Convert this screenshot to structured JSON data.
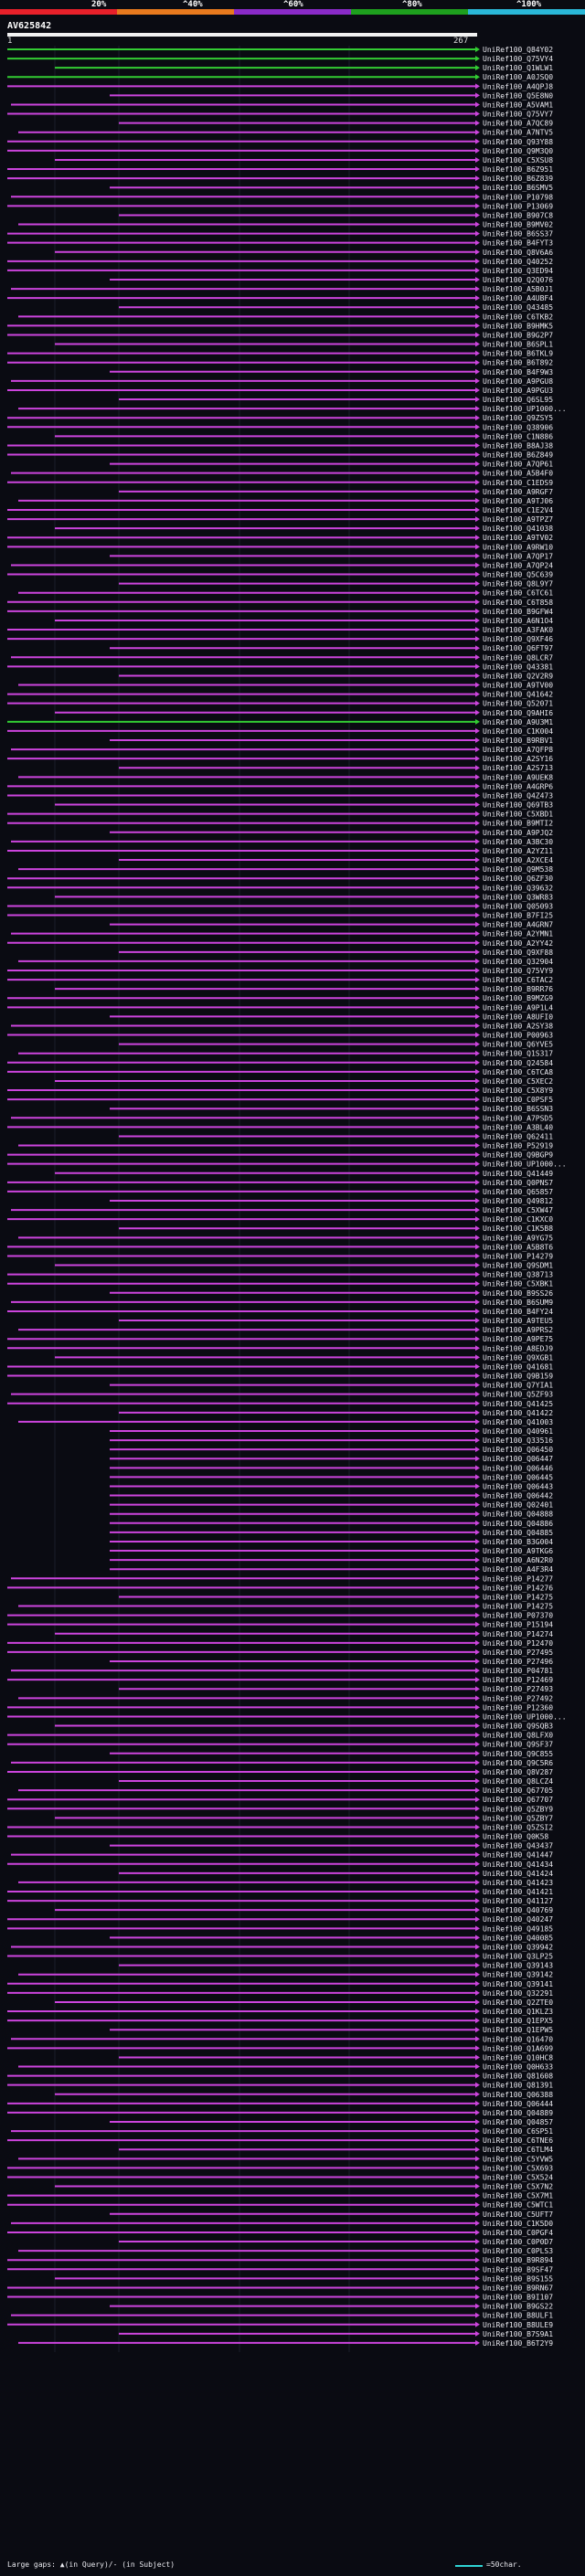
{
  "query": {
    "id": "AV625842",
    "start_label": "1",
    "end_label": "267",
    "length": 267
  },
  "percent_scale": {
    "labels": [
      "20%",
      "^40%",
      "^60%",
      "^80%",
      "^100%"
    ],
    "colors": [
      "#e8202a",
      "#e87a1e",
      "#8a2ac8",
      "#1ea01e",
      "#2ab8d8"
    ]
  },
  "colors": {
    "background": "#0a0b12",
    "hit_magenta": "#cc44dd",
    "hit_green": "#33cc33",
    "gap": "#cc44dd",
    "query_line": "#f2f2f2",
    "scale_line": "#2fd4d4"
  },
  "footer": {
    "large_gaps_text": "Large gaps: ▲(in Query)/- (in Subject)",
    "scale_text": "=50char."
  },
  "hit_ids": [
    "UniRef100_Q84Y02",
    "UniRef100_Q75VY4",
    "UniRef100_Q1WLW1",
    "UniRef100_A0JSQ0",
    "UniRef100_A4QPJ8",
    "UniRef100_Q5E8N0",
    "UniRef100_A5VAM1",
    "UniRef100_Q75VY7",
    "UniRef100_A7QC89",
    "UniRef100_A7NTV5",
    "UniRef100_Q93Y88",
    "UniRef100_Q9M3Q0",
    "UniRef100_C5XSU8",
    "UniRef100_B6Z951",
    "UniRef100_B6Z839",
    "UniRef100_B6SMV5",
    "UniRef100_P10798",
    "UniRef100_P13069",
    "UniRef100_B907C8",
    "UniRef100_B9MV02",
    "UniRef100_B6SS37",
    "UniRef100_B4FYT3",
    "UniRef100_Q8V6A6",
    "UniRef100_Q40252",
    "UniRef100_Q3ED94",
    "UniRef100_Q2Q076",
    "UniRef100_A5B0J1",
    "UniRef100_A4UBF4",
    "UniRef100_Q43485",
    "UniRef100_C6TKB2",
    "UniRef100_B9HMK5",
    "UniRef100_B9G2P7",
    "UniRef100_B6SPL1",
    "UniRef100_B6TKL9",
    "UniRef100_B6T892",
    "UniRef100_B4F9W3",
    "UniRef100_A9PGU8",
    "UniRef100_A9PGU3",
    "UniRef100_Q6SL95",
    "UniRef100_UP1000...",
    "UniRef100_Q9ZSY5",
    "UniRef100_Q38906",
    "UniRef100_C1N886",
    "UniRef100_B8AJ38",
    "UniRef100_B6Z849",
    "UniRef100_A7QP61",
    "UniRef100_A5B4F0",
    "UniRef100_C1EDS9",
    "UniRef100_A9RGF7",
    "UniRef100_A9TJ06",
    "UniRef100_C1E2V4",
    "UniRef100_A9TPZ7",
    "UniRef100_Q41038",
    "UniRef100_A9TV02",
    "UniRef100_A9RW10",
    "UniRef100_A7QP17",
    "UniRef100_A7QP24",
    "UniRef100_Q5C639",
    "UniRef100_Q8L9Y7",
    "UniRef100_C6TC61",
    "UniRef100_C6T858",
    "UniRef100_B9GFW4",
    "UniRef100_A6N1O4",
    "UniRef100_A3FAK0",
    "UniRef100_Q9XF46",
    "UniRef100_Q6FT97",
    "UniRef100_Q8LCR7",
    "UniRef100_Q43381",
    "UniRef100_Q2V2R9",
    "UniRef100_A9TV00",
    "UniRef100_Q41642",
    "UniRef100_Q52071",
    "UniRef100_Q9AHI6",
    "UniRef100_A9U3M1",
    "UniRef100_C1K004",
    "UniRef100_B9RBV1",
    "UniRef100_A7QFP8",
    "UniRef100_A2SY16",
    "UniRef100_A2S713",
    "UniRef100_A9UEK8",
    "UniRef100_A4GRP6",
    "UniRef100_Q4Z473",
    "UniRef100_Q69TB3",
    "UniRef100_C5XBD1",
    "UniRef100_B9MTI2",
    "UniRef100_A9PJQ2",
    "UniRef100_A3BC30",
    "UniRef100_A2YZ11",
    "UniRef100_A2XCE4",
    "UniRef100_Q9M538",
    "UniRef100_Q6ZF30",
    "UniRef100_Q39632",
    "UniRef100_Q3WR83",
    "UniRef100_Q05093",
    "UniRef100_B7FI25",
    "UniRef100_A4GRN7",
    "UniRef100_A2YMN1",
    "UniRef100_A2YY42",
    "UniRef100_Q9XF88",
    "UniRef100_Q32904",
    "UniRef100_Q75VY9",
    "UniRef100_C6TAC2",
    "UniRef100_B9RR76",
    "UniRef100_B9MZG9",
    "UniRef100_A9P1L4",
    "UniRef100_A8UFI0",
    "UniRef100_A2SY38",
    "UniRef100_P00963",
    "UniRef100_Q6YVE5",
    "UniRef100_Q1S317",
    "UniRef100_Q24584",
    "UniRef100_C6TCA8",
    "UniRef100_C5XEC2",
    "UniRef100_C5X8Y9",
    "UniRef100_C0PSF5",
    "UniRef100_B6SSN3",
    "UniRef100_A7PSD5",
    "UniRef100_A3BL40",
    "UniRef100_Q62411",
    "UniRef100_P52919",
    "UniRef100_Q9BGP9",
    "UniRef100_UP1000...",
    "UniRef100_Q41449",
    "UniRef100_Q0PNS7",
    "UniRef100_Q65857",
    "UniRef100_Q49812",
    "UniRef100_C5XW47",
    "UniRef100_C1KXC0",
    "UniRef100_C1K5B8",
    "UniRef100_A9YG75",
    "UniRef100_A5B8T6",
    "UniRef100_P14279",
    "UniRef100_Q9SDM1",
    "UniRef100_Q38713",
    "UniRef100_C5XBK1",
    "UniRef100_B9SS26",
    "UniRef100_B6SUM9",
    "UniRef100_B4FY24",
    "UniRef100_A9TEU5",
    "UniRef100_A9PRS2",
    "UniRef100_A9PE75",
    "UniRef100_A8EDJ9",
    "UniRef100_Q9XGB1",
    "UniRef100_Q41681",
    "UniRef100_Q9B159",
    "UniRef100_Q7YIA1",
    "UniRef100_Q5ZF93",
    "UniRef100_Q41425",
    "UniRef100_Q41422",
    "UniRef100_Q41003",
    "UniRef100_Q40961",
    "UniRef100_Q33516",
    "UniRef100_Q06450",
    "UniRef100_Q06447",
    "UniRef100_Q06446",
    "UniRef100_Q06445",
    "UniRef100_Q06443",
    "UniRef100_Q06442",
    "UniRef100_Q02401",
    "UniRef100_Q04888",
    "UniRef100_Q04886",
    "UniRef100_Q04885",
    "UniRef100_B3G004",
    "UniRef100_A9TKG6",
    "UniRef100_A6N2R0",
    "UniRef100_A4F3R4",
    "UniRef100_P14277",
    "UniRef100_P14276",
    "UniRef100_P14275",
    "UniRef100_P14275",
    "UniRef100_P07370",
    "UniRef100_P15194",
    "UniRef100_P14274",
    "UniRef100_P12470",
    "UniRef100_P27495",
    "UniRef100_P27496",
    "UniRef100_P04781",
    "UniRef100_P12469",
    "UniRef100_P27493",
    "UniRef100_P27492",
    "UniRef100_P12360",
    "UniRef100_UP1000...",
    "UniRef100_Q9SQB3",
    "UniRef100_Q8LFX0",
    "UniRef100_Q9SF37",
    "UniRef100_Q9C855",
    "UniRef100_Q9C5R6",
    "UniRef100_Q8V287",
    "UniRef100_Q8LCZ4",
    "UniRef100_Q67705",
    "UniRef100_Q67707",
    "UniRef100_Q5ZBY9",
    "UniRef100_Q5ZBY7",
    "UniRef100_Q5ZSI2",
    "UniRef100_Q0K58",
    "UniRef100_Q43437",
    "UniRef100_Q41447",
    "UniRef100_Q41434",
    "UniRef100_Q41424",
    "UniRef100_Q41423",
    "UniRef100_Q41421",
    "UniRef100_Q41127",
    "UniRef100_Q40769",
    "UniRef100_Q40247",
    "UniRef100_Q49185",
    "UniRef100_Q40085",
    "UniRef100_Q39942",
    "UniRef100_Q3LP25",
    "UniRef100_Q39143",
    "UniRef100_Q39142",
    "UniRef100_Q39141",
    "UniRef100_Q32291",
    "UniRef100_Q2ZTE0",
    "UniRef100_Q1KLZ3",
    "UniRef100_Q1EPX5",
    "UniRef100_Q1EPW5",
    "UniRef100_Q16470",
    "UniRef100_Q1A699",
    "UniRef100_Q10HC8",
    "UniRef100_Q0H633",
    "UniRef100_Q81608",
    "UniRef100_Q81391",
    "UniRef100_Q06388",
    "UniRef100_Q06444",
    "UniRef100_Q04889",
    "UniRef100_Q04857",
    "UniRef100_C6SP51",
    "UniRef100_C6TNE6",
    "UniRef100_C6TLM4",
    "UniRef100_C5YVW5",
    "UniRef100_C5X693",
    "UniRef100_C5X524",
    "UniRef100_C5X7N2",
    "UniRef100_C5X7M1",
    "UniRef100_C5WTC1",
    "UniRef100_C5UFT7",
    "UniRef100_C1K5D0",
    "UniRef100_C0PGF4",
    "UniRef100_C0P0D7",
    "UniRef100_C0PLS3",
    "UniRef100_B9R894",
    "UniRef100_B9SF47",
    "UniRef100_B9S155",
    "UniRef100_B9RN67",
    "UniRef100_B9I107",
    "UniRef100_B9GS22",
    "UniRef100_B8ULF1",
    "UniRef100_B8ULE9",
    "UniRef100_B7S9A1",
    "UniRef100_B6T2Y9"
  ]
}
